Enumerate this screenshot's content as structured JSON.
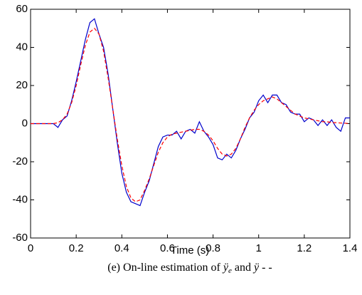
{
  "chart_data": {
    "type": "line",
    "xlabel": "Time (s)",
    "caption": [
      "(e) On-line estimation of ",
      "ÿ",
      "e",
      " and ",
      "ÿ",
      " - -"
    ],
    "x": [
      0,
      0.02,
      0.04,
      0.06,
      0.08,
      0.1,
      0.12,
      0.14,
      0.16,
      0.18,
      0.2,
      0.22,
      0.24,
      0.26,
      0.28,
      0.3,
      0.32,
      0.34,
      0.36,
      0.38,
      0.4,
      0.42,
      0.44,
      0.46,
      0.48,
      0.5,
      0.52,
      0.54,
      0.56,
      0.58,
      0.6,
      0.62,
      0.64,
      0.66,
      0.68,
      0.7,
      0.72,
      0.74,
      0.76,
      0.78,
      0.8,
      0.82,
      0.84,
      0.86,
      0.88,
      0.9,
      0.92,
      0.94,
      0.96,
      0.98,
      1.0,
      1.02,
      1.04,
      1.06,
      1.08,
      1.1,
      1.12,
      1.14,
      1.16,
      1.18,
      1.2,
      1.22,
      1.24,
      1.26,
      1.28,
      1.3,
      1.32,
      1.34,
      1.36,
      1.38,
      1.4
    ],
    "series": [
      {
        "color": "#0000cc",
        "dashed": false,
        "values": [
          0,
          0,
          0,
          0,
          0,
          0,
          -2,
          2,
          4,
          12,
          22,
          33,
          44,
          53,
          55,
          47,
          40,
          26,
          8,
          -10,
          -26,
          -36,
          -41,
          -42,
          -43,
          -36,
          -30,
          -21,
          -12,
          -7,
          -6,
          -6,
          -4,
          -8,
          -4,
          -3,
          -5,
          1,
          -4,
          -7,
          -11,
          -18,
          -19,
          -16,
          -18,
          -14,
          -8,
          -3,
          3,
          6,
          12,
          15,
          11,
          15,
          15,
          11,
          10,
          6,
          5,
          5,
          1,
          3,
          2,
          -1,
          2,
          -1,
          2,
          -2,
          -4,
          3,
          3
        ]
      },
      {
        "color": "#ff0000",
        "dashed": true,
        "values": [
          0,
          0,
          0,
          0,
          0,
          0,
          0.5,
          2,
          5,
          11,
          20,
          31,
          41,
          48,
          50,
          47,
          38,
          24,
          8,
          -8,
          -22,
          -33,
          -39,
          -41,
          -40,
          -35,
          -29,
          -22,
          -15,
          -10,
          -7,
          -5.5,
          -5,
          -4.5,
          -4,
          -3.5,
          -3,
          -3,
          -4,
          -6,
          -9,
          -13,
          -16,
          -17,
          -16,
          -13,
          -8,
          -2,
          3,
          7,
          10,
          12,
          13,
          14,
          13,
          11,
          9,
          7,
          5,
          4,
          3,
          2.5,
          2,
          1.5,
          1,
          1,
          0.5,
          0.5,
          0.3,
          0.2,
          0
        ]
      }
    ],
    "xlim": [
      0,
      1.4
    ],
    "xticks": [
      0,
      0.2,
      0.4,
      0.6,
      0.8,
      1,
      1.2,
      1.4
    ],
    "ylim": [
      -60,
      60
    ],
    "yticks": [
      -60,
      -40,
      -20,
      0,
      20,
      40,
      60
    ]
  }
}
